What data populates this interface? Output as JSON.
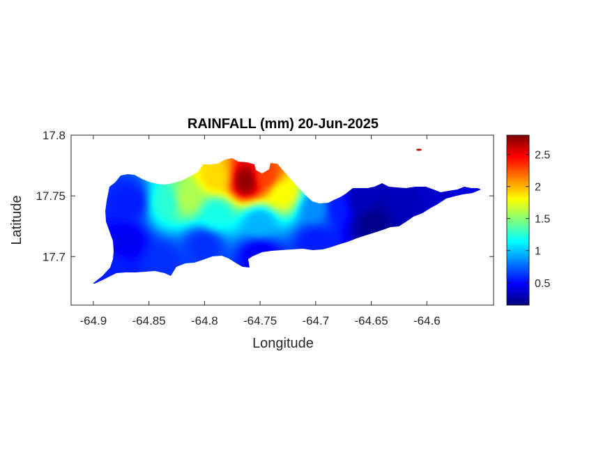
{
  "chart_data": {
    "type": "heatmap",
    "title": "RAINFALL (mm) 20-Jun-2025",
    "xlabel": "Longitude",
    "ylabel": "Latitude",
    "xlim": [
      -64.92,
      -64.54
    ],
    "ylim": [
      17.66,
      17.8
    ],
    "xticks": [
      -64.9,
      -64.85,
      -64.8,
      -64.75,
      -64.7,
      -64.65,
      -64.6
    ],
    "xtick_labels": [
      "-64.9",
      "-64.85",
      "-64.8",
      "-64.75",
      "-64.7",
      "-64.65",
      "-64.6"
    ],
    "yticks": [
      17.7,
      17.75,
      17.8
    ],
    "ytick_labels": [
      "17.7",
      "17.75",
      "17.8"
    ],
    "colorbar": {
      "colormap": "jet",
      "range": [
        0.15,
        2.8
      ],
      "ticks": [
        0.5,
        1,
        1.5,
        2,
        2.5
      ],
      "tick_labels": [
        "0.5",
        "1",
        "1.5",
        "2",
        "2.5"
      ]
    },
    "grid": false,
    "rainfall_centers": [
      {
        "lon": -64.762,
        "lat": 17.762,
        "value": 2.75
      },
      {
        "lon": -64.745,
        "lat": 17.765,
        "value": 2.3
      },
      {
        "lon": -64.79,
        "lat": 17.765,
        "value": 1.9
      },
      {
        "lon": -64.73,
        "lat": 17.752,
        "value": 1.8
      },
      {
        "lon": -64.815,
        "lat": 17.748,
        "value": 1.6
      },
      {
        "lon": -64.835,
        "lat": 17.745,
        "value": 1.25
      },
      {
        "lon": -64.79,
        "lat": 17.735,
        "value": 1.2
      },
      {
        "lon": -64.75,
        "lat": 17.728,
        "value": 0.95
      },
      {
        "lon": -64.7,
        "lat": 17.74,
        "value": 0.85
      },
      {
        "lon": -64.865,
        "lat": 17.745,
        "value": 0.55
      },
      {
        "lon": -64.87,
        "lat": 17.712,
        "value": 0.45
      },
      {
        "lon": -64.88,
        "lat": 17.69,
        "value": 0.55
      },
      {
        "lon": -64.84,
        "lat": 17.695,
        "value": 0.6
      },
      {
        "lon": -64.8,
        "lat": 17.71,
        "value": 0.6
      },
      {
        "lon": -64.75,
        "lat": 17.702,
        "value": 0.45
      },
      {
        "lon": -64.7,
        "lat": 17.712,
        "value": 0.55
      },
      {
        "lon": -64.68,
        "lat": 17.74,
        "value": 0.55
      },
      {
        "lon": -64.66,
        "lat": 17.745,
        "value": 0.3
      },
      {
        "lon": -64.65,
        "lat": 17.728,
        "value": 0.18
      },
      {
        "lon": -64.62,
        "lat": 17.74,
        "value": 0.3
      },
      {
        "lon": -64.59,
        "lat": 17.748,
        "value": 0.35
      },
      {
        "lon": -64.565,
        "lat": 17.753,
        "value": 0.4
      }
    ]
  }
}
